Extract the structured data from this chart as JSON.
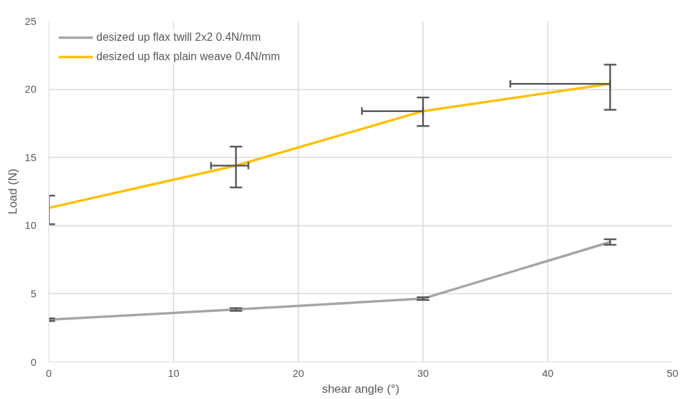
{
  "chart_data": {
    "type": "line",
    "xlabel": "shear angle (°)",
    "ylabel": "Load (N)",
    "x": [
      0,
      15,
      30,
      45
    ],
    "series": [
      {
        "name": "desized up flax twill 2x2 0.4N/mm",
        "color": "#a5a5a5",
        "values": [
          3.1,
          3.85,
          4.65,
          8.8
        ],
        "errors": [
          0.1,
          0.1,
          0.1,
          0.2
        ]
      },
      {
        "name": "desized up flax plain weave 0.4N/mm",
        "color": "#ffc000",
        "values": [
          11.3,
          14.4,
          18.4,
          20.4
        ],
        "errors": [
          [
            10.1,
            12.2
          ],
          [
            12.8,
            15.8
          ],
          [
            17.3,
            19.4
          ],
          [
            18.5,
            21.8
          ]
        ],
        "xerrors": [
          null,
          [
            13.0,
            16.0
          ],
          [
            25.1,
            30
          ],
          [
            37.0,
            45
          ]
        ]
      }
    ],
    "xlim": [
      0,
      50
    ],
    "xticks": [
      0,
      10,
      20,
      30,
      40,
      50
    ],
    "ylim": [
      0,
      25
    ],
    "yticks": [
      0,
      5,
      10,
      15,
      20,
      25
    ],
    "grid": true,
    "legend": "top left",
    "marker": "none",
    "line_style": "solid"
  }
}
